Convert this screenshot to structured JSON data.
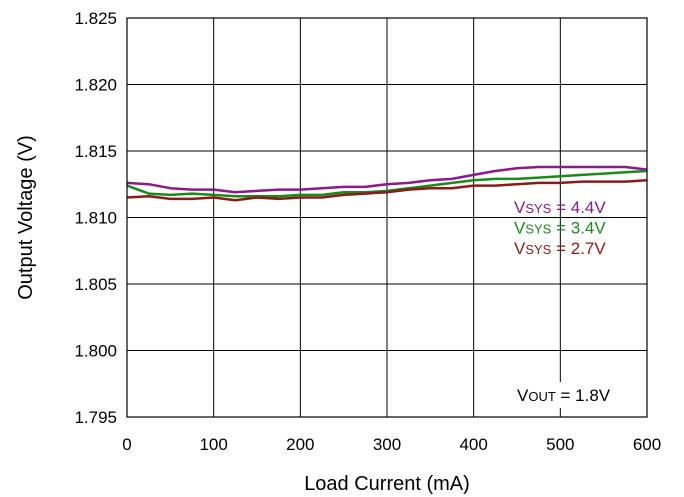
{
  "chart_data": {
    "type": "line",
    "title": "",
    "xlabel": "Load Current (mA)",
    "ylabel": "Output Voltage (V)",
    "xlim": [
      0,
      600
    ],
    "ylim": [
      1.795,
      1.825
    ],
    "xticks": [
      "0",
      "100",
      "200",
      "300",
      "400",
      "500",
      "600"
    ],
    "yticks": [
      "1.795",
      "1.800",
      "1.805",
      "1.810",
      "1.815",
      "1.820",
      "1.825"
    ],
    "grid": true,
    "x": [
      0,
      25,
      50,
      75,
      100,
      125,
      150,
      175,
      200,
      225,
      250,
      275,
      300,
      325,
      350,
      375,
      400,
      425,
      450,
      475,
      500,
      525,
      550,
      575,
      600
    ],
    "series": [
      {
        "name_prefix": "V",
        "name_sub": "SYS",
        "name_suffix": " = 4.4V",
        "color": "#8B1A8B",
        "values": [
          1.8126,
          1.8125,
          1.8122,
          1.8121,
          1.8121,
          1.8119,
          1.812,
          1.8121,
          1.8121,
          1.8122,
          1.8123,
          1.8123,
          1.8125,
          1.8126,
          1.8128,
          1.8129,
          1.8132,
          1.8135,
          1.8137,
          1.8138,
          1.8138,
          1.8138,
          1.8138,
          1.8138,
          1.8136
        ]
      },
      {
        "name_prefix": "V",
        "name_sub": "SYS",
        "name_suffix": " = 3.4V",
        "color": "#1A8A1A",
        "values": [
          1.8124,
          1.8118,
          1.8117,
          1.8118,
          1.8117,
          1.8116,
          1.8116,
          1.8116,
          1.8117,
          1.8117,
          1.8119,
          1.8119,
          1.812,
          1.8122,
          1.8124,
          1.8126,
          1.8128,
          1.8129,
          1.8129,
          1.813,
          1.8131,
          1.8132,
          1.8133,
          1.8134,
          1.8135
        ]
      },
      {
        "name_prefix": "V",
        "name_sub": "SYS",
        "name_suffix": " = 2.7V",
        "color": "#8B1A1A",
        "values": [
          1.8115,
          1.8116,
          1.8114,
          1.8114,
          1.8115,
          1.8113,
          1.8115,
          1.8114,
          1.8115,
          1.8115,
          1.8117,
          1.8118,
          1.8119,
          1.8121,
          1.8122,
          1.8122,
          1.8124,
          1.8124,
          1.8125,
          1.8126,
          1.8126,
          1.8127,
          1.8127,
          1.8127,
          1.8128
        ]
      }
    ],
    "annotation": {
      "prefix": "V",
      "sub": "OUT",
      "suffix": " = 1.8V"
    }
  }
}
